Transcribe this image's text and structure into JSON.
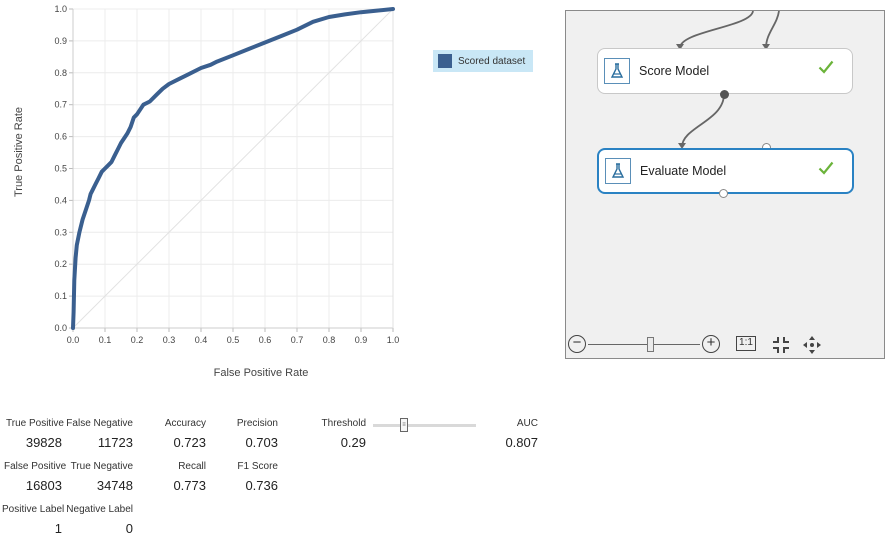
{
  "chart_data": {
    "type": "line",
    "xlabel": "False Positive Rate",
    "ylabel": "True Positive Rate",
    "xlim": [
      0,
      1
    ],
    "ylim": [
      0,
      1
    ],
    "x_ticks": [
      "0.0",
      "0.1",
      "0.2",
      "0.3",
      "0.4",
      "0.5",
      "0.6",
      "0.7",
      "0.8",
      "0.9",
      "1.0"
    ],
    "y_ticks": [
      "0.0",
      "0.1",
      "0.2",
      "0.3",
      "0.4",
      "0.5",
      "0.6",
      "0.7",
      "0.8",
      "0.9",
      "1.0"
    ],
    "grid": true,
    "legend_position": "right",
    "series": [
      {
        "name": "Scored dataset",
        "color": "#3a5f8f",
        "points": [
          [
            0,
            0
          ],
          [
            0.002,
            0.05
          ],
          [
            0.004,
            0.15
          ],
          [
            0.008,
            0.22
          ],
          [
            0.012,
            0.26
          ],
          [
            0.02,
            0.3
          ],
          [
            0.03,
            0.34
          ],
          [
            0.04,
            0.37
          ],
          [
            0.05,
            0.4
          ],
          [
            0.055,
            0.42
          ],
          [
            0.06,
            0.43
          ],
          [
            0.07,
            0.45
          ],
          [
            0.08,
            0.47
          ],
          [
            0.09,
            0.49
          ],
          [
            0.1,
            0.5
          ],
          [
            0.11,
            0.51
          ],
          [
            0.12,
            0.52
          ],
          [
            0.13,
            0.54
          ],
          [
            0.14,
            0.56
          ],
          [
            0.15,
            0.58
          ],
          [
            0.17,
            0.61
          ],
          [
            0.18,
            0.63
          ],
          [
            0.19,
            0.66
          ],
          [
            0.2,
            0.67
          ],
          [
            0.22,
            0.7
          ],
          [
            0.24,
            0.71
          ],
          [
            0.26,
            0.73
          ],
          [
            0.28,
            0.75
          ],
          [
            0.3,
            0.765
          ],
          [
            0.33,
            0.78
          ],
          [
            0.36,
            0.795
          ],
          [
            0.4,
            0.815
          ],
          [
            0.43,
            0.825
          ],
          [
            0.45,
            0.835
          ],
          [
            0.5,
            0.855
          ],
          [
            0.55,
            0.875
          ],
          [
            0.6,
            0.895
          ],
          [
            0.65,
            0.915
          ],
          [
            0.7,
            0.935
          ],
          [
            0.75,
            0.96
          ],
          [
            0.8,
            0.975
          ],
          [
            0.85,
            0.983
          ],
          [
            0.9,
            0.99
          ],
          [
            0.95,
            0.995
          ],
          [
            1.0,
            1.0
          ]
        ]
      }
    ],
    "reference_line": {
      "color": "#e2e2e2",
      "points": [
        [
          0,
          0
        ],
        [
          1,
          1
        ]
      ]
    }
  },
  "legend": {
    "label": "Scored dataset",
    "color": "#3a5f8f"
  },
  "canvas": {
    "modules": [
      {
        "name": "Score Model",
        "status": "check-icon"
      },
      {
        "name": "Evaluate Model",
        "status": "check-icon",
        "selected": true
      }
    ],
    "zoom": {
      "one_to_one_label": "1:1"
    },
    "colors": {
      "selected_border": "#2a82c3",
      "check": "#6bb33a"
    }
  },
  "metrics": {
    "true_positive": {
      "label": "True Positive",
      "value": "39828"
    },
    "false_negative": {
      "label": "False Negative",
      "value": "11723"
    },
    "accuracy": {
      "label": "Accuracy",
      "value": "0.723"
    },
    "precision": {
      "label": "Precision",
      "value": "0.703"
    },
    "threshold": {
      "label": "Threshold",
      "value": "0.29"
    },
    "auc": {
      "label": "AUC",
      "value": "0.807"
    },
    "false_positive": {
      "label": "False Positive",
      "value": "16803"
    },
    "true_negative": {
      "label": "True Negative",
      "value": "34748"
    },
    "recall": {
      "label": "Recall",
      "value": "0.773"
    },
    "f1_score": {
      "label": "F1 Score",
      "value": "0.736"
    },
    "positive_label": {
      "label": "Positive Label",
      "value": "1"
    },
    "negative_label": {
      "label": "Negative Label",
      "value": "0"
    }
  }
}
